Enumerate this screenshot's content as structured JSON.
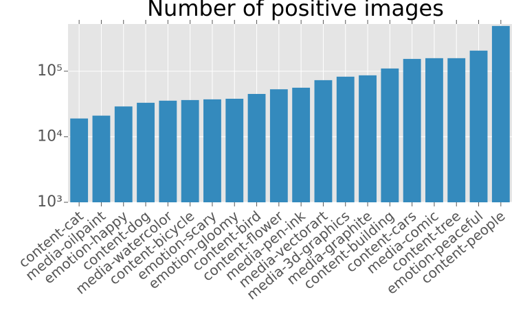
{
  "chart_data": {
    "type": "bar",
    "title": "Number of positive images",
    "categories": [
      "content-cat",
      "media-oilpaint",
      "emotion-happy",
      "content-dog",
      "media-watercolor",
      "content-bicycle",
      "emotion-scary",
      "emotion-gloomy",
      "content-bird",
      "content-flower",
      "media-pen-ink",
      "media-vectorart",
      "media-3d-graphics",
      "media-graphite",
      "content-building",
      "content-cars",
      "media-comic",
      "content-tree",
      "emotion-peaceful",
      "content-people"
    ],
    "values": [
      19000,
      21000,
      29000,
      33000,
      35500,
      36300,
      37200,
      38000,
      45000,
      53000,
      56000,
      73000,
      82500,
      86500,
      110000,
      154000,
      158000,
      158000,
      206000,
      490000
    ],
    "color": "#348abd",
    "ylim": [
      1000,
      525000
    ],
    "yticks": [
      {
        "value": 1000,
        "label": "10³"
      },
      {
        "value": 10000,
        "label": "10⁴"
      },
      {
        "value": 100000,
        "label": "10⁵"
      }
    ],
    "log_scale_y": true,
    "grid": true
  }
}
